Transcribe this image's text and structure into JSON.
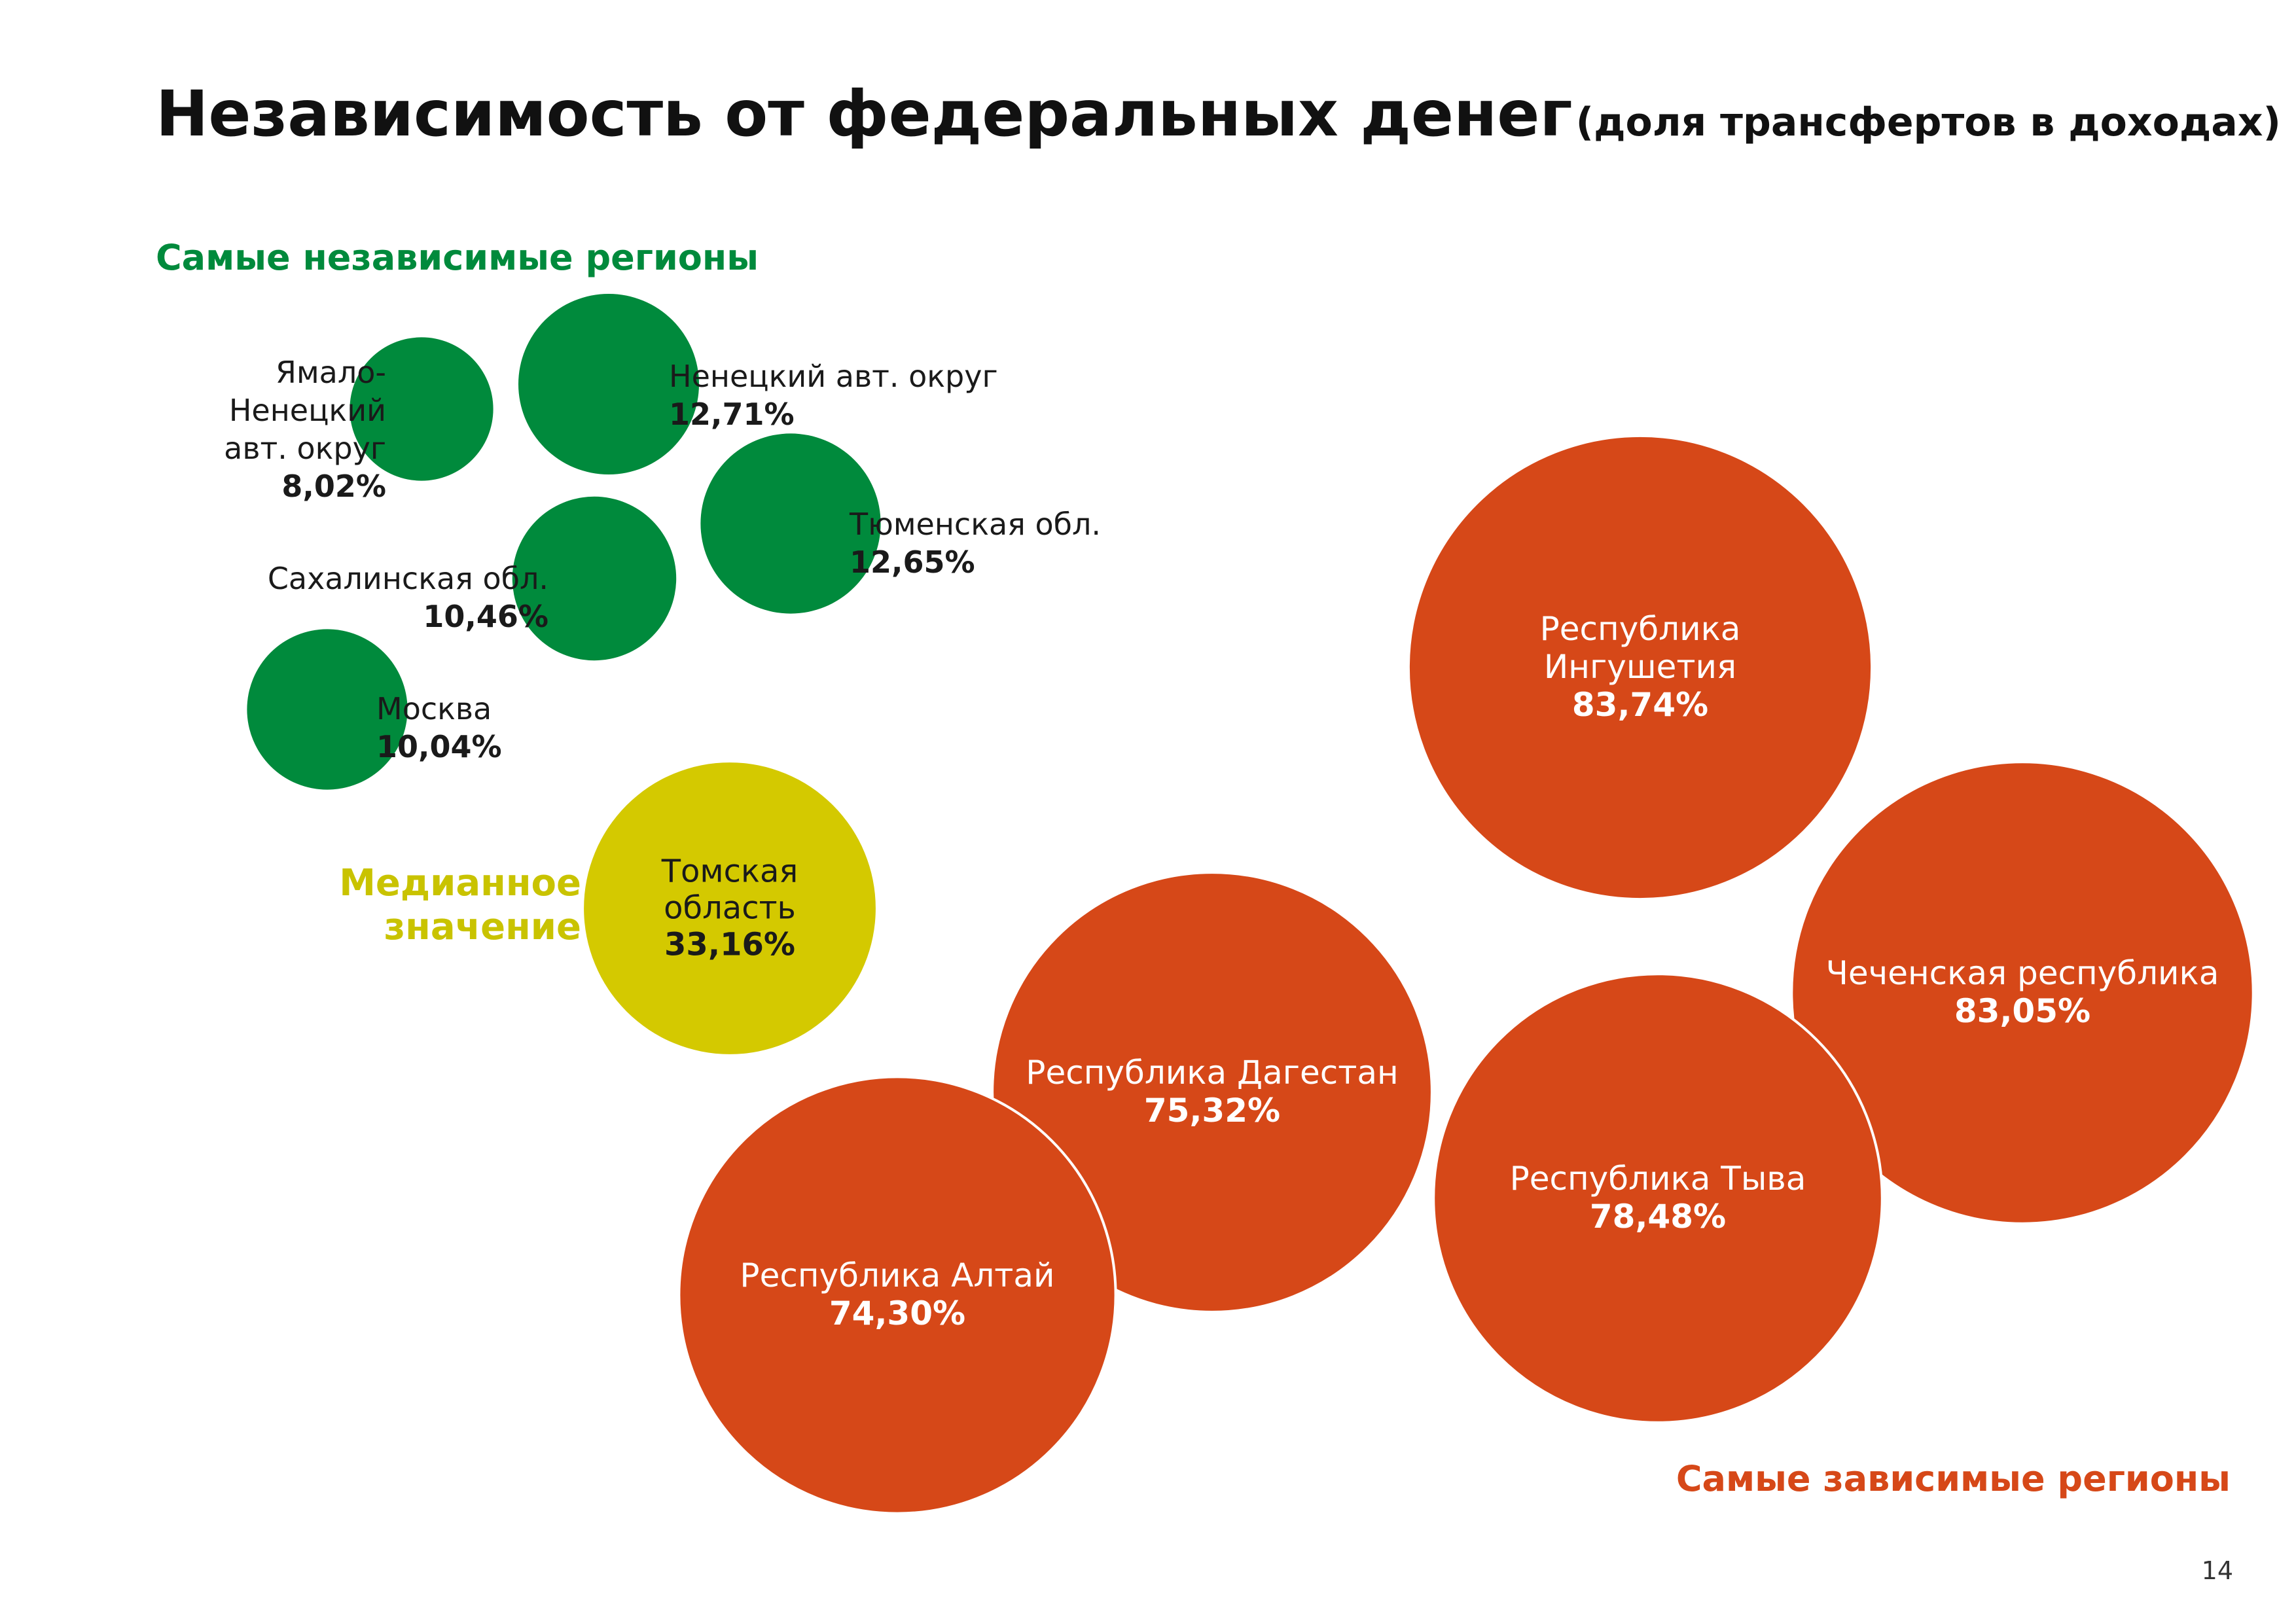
{
  "title": {
    "main": "Независимость от федеральных денег",
    "sub": "(доля трансфертов в доходах)"
  },
  "sections": {
    "independent": "Самые независимые регионы",
    "dependent": "Самые зависимые регионы"
  },
  "median": {
    "label_line1": "Медианное",
    "label_line2": "значение"
  },
  "page_number": "14",
  "colors": {
    "independent": "#008a3c",
    "median": "#d4c900",
    "dependent": "#d64818"
  },
  "chart_data": {
    "type": "bubble",
    "value_label": "доля трансфертов в доходах",
    "series": [
      {
        "group": "independent",
        "points": [
          {
            "name_lines": [
              "Ямало-",
              "Ненецкий",
              "авт. округ"
            ],
            "value": 8.02,
            "value_text": "8,02%"
          },
          {
            "name_lines": [
              "Ненецкий авт. округ"
            ],
            "value": 12.71,
            "value_text": "12,71%"
          },
          {
            "name_lines": [
              "Тюменская обл."
            ],
            "value": 12.65,
            "value_text": "12,65%"
          },
          {
            "name_lines": [
              "Сахалинская обл."
            ],
            "value": 10.46,
            "value_text": "10,46%"
          },
          {
            "name_lines": [
              "Москва"
            ],
            "value": 10.04,
            "value_text": "10,04%"
          }
        ]
      },
      {
        "group": "median",
        "points": [
          {
            "name_lines": [
              "Томская",
              "область"
            ],
            "value": 33.16,
            "value_text": "33,16%"
          }
        ]
      },
      {
        "group": "dependent",
        "points": [
          {
            "name_lines": [
              "Республика",
              "Ингушетия"
            ],
            "value": 83.74,
            "value_text": "83,74%"
          },
          {
            "name_lines": [
              "Чеченская республика"
            ],
            "value": 83.05,
            "value_text": "83,05%"
          },
          {
            "name_lines": [
              "Республика Тыва"
            ],
            "value": 78.48,
            "value_text": "78,48%"
          },
          {
            "name_lines": [
              "Республика Дагестан"
            ],
            "value": 75.32,
            "value_text": "75,32%"
          },
          {
            "name_lines": [
              "Республика Алтай"
            ],
            "value": 74.3,
            "value_text": "74,30%"
          }
        ]
      }
    ]
  }
}
